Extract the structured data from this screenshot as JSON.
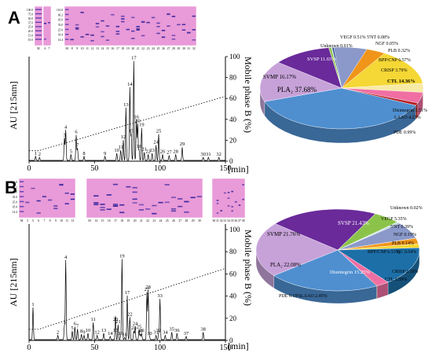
{
  "panel_a": {
    "letter": "A",
    "gel_markers": [
      "100.0",
      "75.0",
      "50.0",
      "37.0",
      "25.0",
      "20.0",
      "15.0",
      "10.0"
    ],
    "gel_markers_2": [
      "116.0",
      "66.2",
      "45.0",
      "35.0",
      "25.0",
      "18.4",
      "14.4"
    ],
    "gel_lanes": [
      "M",
      "6",
      "7",
      "M",
      "8",
      "9",
      "10",
      "11",
      "12",
      "13",
      "14",
      "15",
      "16",
      "17",
      "18",
      "19",
      "20",
      "21",
      "22",
      "23",
      "24",
      "25",
      "26",
      "27",
      "28",
      "29",
      "30",
      "31",
      "32"
    ],
    "y_label": "AU [215nm]",
    "y2_label": "Mobile phase B (%)",
    "x_unit": "[min]",
    "y2_ticks": [
      "0",
      "20",
      "40",
      "60",
      "80",
      "100"
    ],
    "peak_labels": [
      "1",
      "2",
      "3",
      "4",
      "5",
      "6",
      "7",
      "8",
      "9",
      "10",
      "11",
      "12",
      "13",
      "14",
      "15",
      "16",
      "17",
      "18",
      "19",
      "20",
      "21",
      "22",
      "23",
      "24",
      "25",
      "26",
      "27",
      "28",
      "29",
      "30",
      "31",
      "32"
    ]
  },
  "panel_b": {
    "letter": "B",
    "gel_markers": [
      "116.0",
      "66.2",
      "45.0",
      "35.0",
      "25.0",
      "18.4",
      "14.4"
    ],
    "gel_lanes": [
      "M",
      "3",
      "5",
      "6",
      "7",
      "8",
      "9",
      "10",
      "11",
      "13",
      "M",
      "14",
      "15",
      "16",
      "17",
      "18",
      "19",
      "20",
      "21",
      "22",
      "23",
      "24",
      "25",
      "26",
      "27",
      "28",
      "29",
      "30",
      "M",
      "31",
      "32",
      "33",
      "34",
      "35",
      "36",
      "37",
      "38"
    ],
    "y_label": "AU [215nm]",
    "y2_label": "Mobile phase B (%)",
    "x_unit": "[min]",
    "y2_ticks": [
      "0",
      "20",
      "40",
      "60",
      "80",
      "100"
    ],
    "peak_labels": [
      "1",
      "2",
      "3",
      "4",
      "5",
      "6",
      "7",
      "8",
      "9",
      "10",
      "11",
      "12",
      "13",
      "14",
      "15",
      "16",
      "17",
      "18",
      "19",
      "20",
      "21",
      "22",
      "23",
      "24",
      "25",
      "26",
      "27",
      "28",
      "29",
      "30",
      "31",
      "32",
      "33",
      "34",
      "35",
      "36",
      "37",
      "38"
    ]
  },
  "chart_data": [
    {
      "type": "line",
      "panel": "A",
      "xlabel": "[min]",
      "ylabel": "AU [215nm]",
      "y2label": "Mobile phase B (%)",
      "xlim": [
        0,
        150
      ],
      "xticks": [
        0,
        50,
        100,
        150
      ],
      "y2lim": [
        0,
        100
      ],
      "y2ticks": [
        0,
        20,
        40,
        60,
        80,
        100
      ],
      "peaks": [
        {
          "label": "1",
          "rt": 5,
          "h": 0.04
        },
        {
          "label": "2",
          "rt": 8,
          "h": 0.03
        },
        {
          "label": "3",
          "rt": 27,
          "h": 0.22
        },
        {
          "label": "4",
          "rt": 28,
          "h": 0.3
        },
        {
          "label": "5",
          "rt": 32,
          "h": 0.06
        },
        {
          "label": "6",
          "rt": 36,
          "h": 0.25
        },
        {
          "label": "7",
          "rt": 37,
          "h": 0.12
        },
        {
          "label": "8",
          "rt": 42,
          "h": 0.04
        },
        {
          "label": "9",
          "rt": 58,
          "h": 0.04
        },
        {
          "label": "10",
          "rt": 67,
          "h": 0.07
        },
        {
          "label": "11",
          "rt": 70,
          "h": 0.1
        },
        {
          "label": "12",
          "rt": 72,
          "h": 0.2
        },
        {
          "label": "13",
          "rt": 74,
          "h": 0.52
        },
        {
          "label": "14",
          "rt": 77,
          "h": 0.72
        },
        {
          "label": "15",
          "rt": 78,
          "h": 0.26
        },
        {
          "label": "16",
          "rt": 82,
          "h": 0.4
        },
        {
          "label": "17",
          "rt": 80,
          "h": 0.98
        },
        {
          "label": "18",
          "rt": 84,
          "h": 0.11
        },
        {
          "label": "19",
          "rt": 86,
          "h": 0.32
        },
        {
          "label": "20",
          "rt": 83,
          "h": 0.36
        },
        {
          "label": "21",
          "rt": 88,
          "h": 0.08
        },
        {
          "label": "22",
          "rt": 91,
          "h": 0.06
        },
        {
          "label": "23",
          "rt": 94,
          "h": 0.07
        },
        {
          "label": "24",
          "rt": 97,
          "h": 0.15
        },
        {
          "label": "25",
          "rt": 99,
          "h": 0.26
        },
        {
          "label": "26",
          "rt": 102,
          "h": 0.06
        },
        {
          "label": "27",
          "rt": 107,
          "h": 0.05
        },
        {
          "label": "28",
          "rt": 112,
          "h": 0.06
        },
        {
          "label": "29",
          "rt": 117,
          "h": 0.13
        },
        {
          "label": "30",
          "rt": 133,
          "h": 0.03
        },
        {
          "label": "31",
          "rt": 137,
          "h": 0.03
        },
        {
          "label": "32",
          "rt": 145,
          "h": 0.03
        }
      ]
    },
    {
      "type": "pie",
      "panel": "A",
      "slices": [
        {
          "name": "PLA₂",
          "value": 37.68,
          "label": "PLA₂ 37.68%",
          "color": "#4f8fd0"
        },
        {
          "name": "SVMP",
          "value": 16.17,
          "label": "SVMP 16.17%",
          "color": "#c7a2d9"
        },
        {
          "name": "SVSP",
          "value": 11.65,
          "label": "SVSP 11.65%",
          "color": "#6a2a9a"
        },
        {
          "name": "Unknown",
          "value": 0.01,
          "label": "Unknown 0.01%",
          "color": "#9aa0a6"
        },
        {
          "name": "VEGF",
          "value": 0.51,
          "label": "VEGF 0.51%",
          "color": "#8bc34a"
        },
        {
          "name": "5'NT",
          "value": 0.08,
          "label": "5'NT 0.08%",
          "color": "#c9e3f5"
        },
        {
          "name": "NGF",
          "value": 0.05,
          "label": "NGF 0.05%",
          "color": "#2e7d32"
        },
        {
          "name": "PLB",
          "value": 0.32,
          "label": "PLB 0.32%",
          "color": "#1e3a8a"
        },
        {
          "name": "BPP/CNP",
          "value": 6.57,
          "label": "BPP/CNP 6.57%",
          "color": "#8a99c9"
        },
        {
          "name": "CRISP",
          "value": 3.79,
          "label": "CRISP 3.79%",
          "color": "#f0951a"
        },
        {
          "name": "CTL",
          "value": 14.36,
          "label": "CTL 14.36%",
          "color": "#f5d735"
        },
        {
          "name": "Disintegrin",
          "value": 3.51,
          "label": "Disintegrin 3.51%",
          "color": "#f7eaa5"
        },
        {
          "name": "LAAO",
          "value": 4.27,
          "label": "LAAO 4.27%",
          "color": "#f06fa3"
        },
        {
          "name": "PDE",
          "value": 0.99,
          "label": "PDE 0.99%",
          "color": "#b31d1d"
        }
      ]
    },
    {
      "type": "line",
      "panel": "B",
      "xlabel": "[min]",
      "ylabel": "AU [215nm]",
      "y2label": "Mobile phase B (%)",
      "xlim": [
        0,
        150
      ],
      "xticks": [
        0,
        50,
        100,
        150
      ],
      "y2lim": [
        0,
        100
      ],
      "y2ticks": [
        0,
        20,
        40,
        60,
        80,
        100
      ],
      "peaks": [
        {
          "label": "1",
          "rt": 3,
          "h": 0.3
        },
        {
          "label": "2",
          "rt": 22,
          "h": 0.04
        },
        {
          "label": "3",
          "rt": 27,
          "h": 0.13
        },
        {
          "label": "4",
          "rt": 28,
          "h": 0.74
        },
        {
          "label": "5",
          "rt": 33,
          "h": 0.08
        },
        {
          "label": "6",
          "rt": 35,
          "h": 0.12
        },
        {
          "label": "7",
          "rt": 37,
          "h": 0.1
        },
        {
          "label": "8",
          "rt": 40,
          "h": 0.05
        },
        {
          "label": "9",
          "rt": 42,
          "h": 0.04
        },
        {
          "label": "10",
          "rt": 45,
          "h": 0.06
        },
        {
          "label": "11",
          "rt": 49,
          "h": 0.16
        },
        {
          "label": "12",
          "rt": 52,
          "h": 0.04
        },
        {
          "label": "13",
          "rt": 57,
          "h": 0.06
        },
        {
          "label": "14",
          "rt": 62,
          "h": 0.03
        },
        {
          "label": "15",
          "rt": 66,
          "h": 0.06
        },
        {
          "label": "16",
          "rt": 70,
          "h": 0.03
        },
        {
          "label": "17",
          "rt": 75,
          "h": 0.41
        },
        {
          "label": "18",
          "rt": 73,
          "h": 0.02
        },
        {
          "label": "19",
          "rt": 71,
          "h": 0.75
        },
        {
          "label": "20",
          "rt": 66,
          "h": 0.16
        },
        {
          "label": "21",
          "rt": 68,
          "h": 0.14
        },
        {
          "label": "22",
          "rt": 77,
          "h": 0.21
        },
        {
          "label": "23",
          "rt": 80,
          "h": 0.08
        },
        {
          "label": "24",
          "rt": 81,
          "h": 0.12
        },
        {
          "label": "25",
          "rt": 84,
          "h": 0.09
        },
        {
          "label": "26",
          "rt": 86,
          "h": 0.06
        },
        {
          "label": "27",
          "rt": 90,
          "h": 0.44
        },
        {
          "label": "28",
          "rt": 91,
          "h": 0.46
        },
        {
          "label": "29",
          "rt": 85,
          "h": 0.05
        },
        {
          "label": "30",
          "rt": 92,
          "h": 0.03
        },
        {
          "label": "31",
          "rt": 97,
          "h": 0.04
        },
        {
          "label": "32",
          "rt": 99,
          "h": 0.06
        },
        {
          "label": "33",
          "rt": 100,
          "h": 0.38
        },
        {
          "label": "34",
          "rt": 104,
          "h": 0.04
        },
        {
          "label": "35",
          "rt": 109,
          "h": 0.07
        },
        {
          "label": "36",
          "rt": 113,
          "h": 0.06
        },
        {
          "label": "37",
          "rt": 120,
          "h": 0.03
        },
        {
          "label": "38",
          "rt": 133,
          "h": 0.07
        }
      ]
    },
    {
      "type": "pie",
      "panel": "B",
      "slices": [
        {
          "name": "SVSP",
          "value": 21.43,
          "label": "SVSP 21.43%",
          "color": "#6a2a9a"
        },
        {
          "name": "Unknown",
          "value": 0.02,
          "label": "Unknown 0.02%",
          "color": "#9aa0a6"
        },
        {
          "name": "VEGF",
          "value": 5.35,
          "label": "VEGF 5.35%",
          "color": "#8bc34a"
        },
        {
          "name": "5'NT",
          "value": 0.39,
          "label": "5'NT 0.39%",
          "color": "#c9e3f5"
        },
        {
          "name": "NGF",
          "value": 0.19,
          "label": "NGF 0.19%",
          "color": "#2e7d32"
        },
        {
          "name": "PLB",
          "value": 0.14,
          "label": "PLB 0.14%",
          "color": "#1e3a8a"
        },
        {
          "name": "BPP/CNP",
          "value": 6.53,
          "label": "BPP/CNP 6.53%",
          "color": "#8a99c9"
        },
        {
          "name": "QC",
          "value": 0.04,
          "label": "QC 0.04%",
          "color": "#2a2a2a"
        },
        {
          "name": "CRISP",
          "value": 2.19,
          "label": "CRISP 2.19%",
          "color": "#f0951a"
        },
        {
          "name": "CTL",
          "value": 1.59,
          "label": "CTL 1.59%",
          "color": "#f5d735"
        },
        {
          "name": "Disintegrin",
          "value": 15.25,
          "label": "Disintegrin 15.25%",
          "color": "#1d6fa8"
        },
        {
          "name": "LAAO",
          "value": 2.45,
          "label": "LAAO 2.45%",
          "color": "#f06fa3"
        },
        {
          "name": "PDE",
          "value": 0.19,
          "label": "PDE 0.19%",
          "color": "#b31d1d"
        },
        {
          "name": "PLA₂",
          "value": 22.08,
          "label": "PLA₂ 22.08%",
          "color": "#4f8fd0"
        },
        {
          "name": "SVMP",
          "value": 21.76,
          "label": "SVMP 21.76%",
          "color": "#c7a2d9"
        }
      ]
    }
  ]
}
